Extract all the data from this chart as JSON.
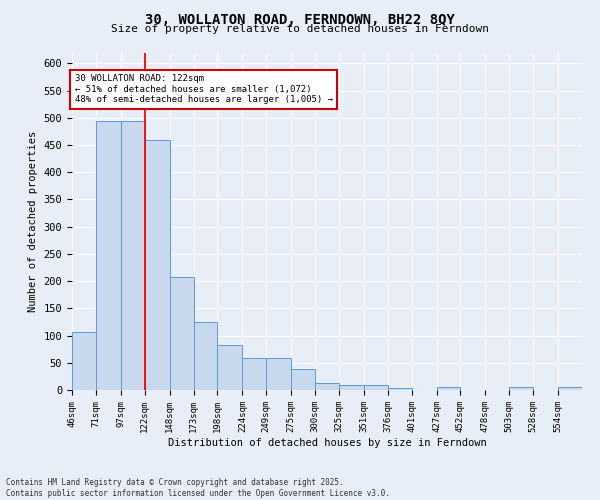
{
  "title": "30, WOLLATON ROAD, FERNDOWN, BH22 8QY",
  "subtitle": "Size of property relative to detached houses in Ferndown",
  "xlabel": "Distribution of detached houses by size in Ferndown",
  "ylabel": "Number of detached properties",
  "footer_line1": "Contains HM Land Registry data © Crown copyright and database right 2025.",
  "footer_line2": "Contains public sector information licensed under the Open Government Licence v3.0.",
  "bin_labels": [
    "46sqm",
    "71sqm",
    "97sqm",
    "122sqm",
    "148sqm",
    "173sqm",
    "198sqm",
    "224sqm",
    "249sqm",
    "275sqm",
    "300sqm",
    "325sqm",
    "351sqm",
    "376sqm",
    "401sqm",
    "427sqm",
    "452sqm",
    "478sqm",
    "503sqm",
    "528sqm",
    "554sqm"
  ],
  "bin_edges": [
    46,
    71,
    97,
    122,
    148,
    173,
    198,
    224,
    249,
    275,
    300,
    325,
    351,
    376,
    401,
    427,
    452,
    478,
    503,
    528,
    554
  ],
  "bar_heights": [
    107,
    495,
    495,
    460,
    208,
    125,
    83,
    58,
    58,
    38,
    13,
    10,
    10,
    3,
    0,
    5,
    0,
    0,
    5,
    0,
    5
  ],
  "bar_color": "#c9d9ed",
  "bar_edge_color": "#5b9bd5",
  "red_line_x": 122,
  "annotation_title": "30 WOLLATON ROAD: 122sqm",
  "annotation_line2": "← 51% of detached houses are smaller (1,072)",
  "annotation_line3": "48% of semi-detached houses are larger (1,005) →",
  "annotation_box_color": "#ffffff",
  "annotation_border_color": "#cc0000",
  "ylim": [
    0,
    620
  ],
  "yticks": [
    0,
    50,
    100,
    150,
    200,
    250,
    300,
    350,
    400,
    450,
    500,
    550,
    600
  ],
  "bg_color": "#e8eef8",
  "plot_bg_color": "#e8eef8",
  "grid_color": "#ffffff"
}
